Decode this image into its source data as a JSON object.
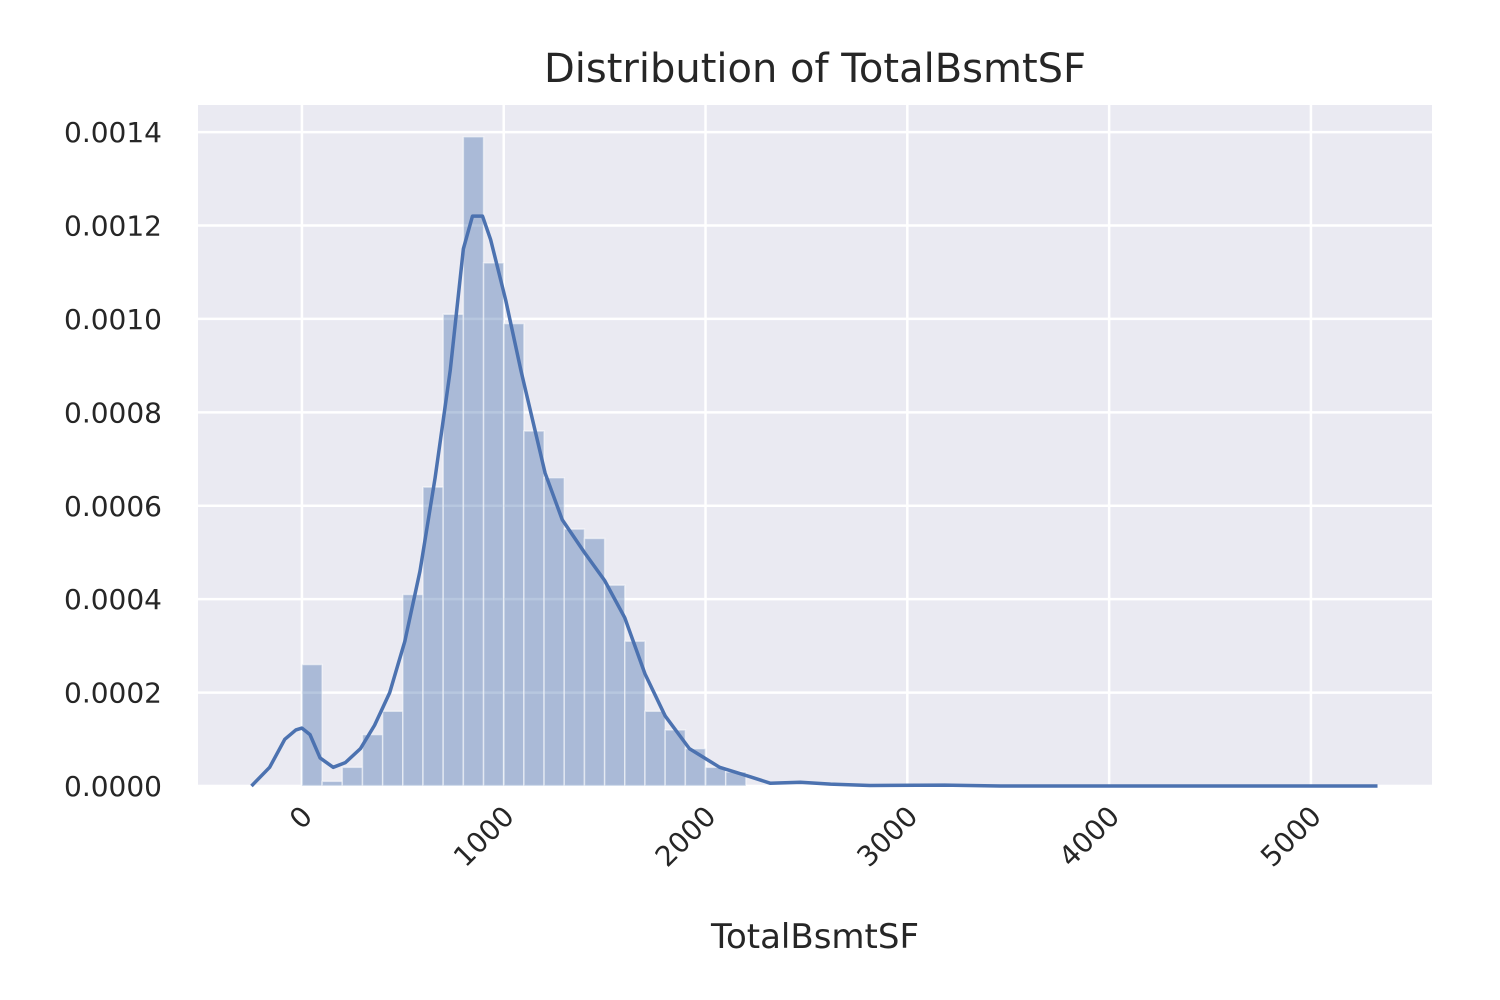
{
  "chart_data": {
    "type": "histogram",
    "title": "Distribution of TotalBsmtSF",
    "x_label": "TotalBsmtSF",
    "bins": [
      0,
      100,
      200,
      300,
      400,
      500,
      600,
      700,
      800,
      900,
      1000,
      1100,
      1200,
      1300,
      1400,
      1500,
      1600,
      1700,
      1800,
      1900,
      2000,
      2100,
      2200
    ],
    "values": [
      0.00026,
      1e-05,
      4e-05,
      0.00011,
      0.00016,
      0.00041,
      0.00064,
      0.00101,
      0.00139,
      0.00112,
      0.00099,
      0.00076,
      0.00066,
      0.00055,
      0.00053,
      0.00043,
      0.00031,
      0.00016,
      0.00012,
      8e-05,
      4e-05,
      3e-05
    ],
    "color": "#4c72b0",
    "kde": {
      "color": "#4c72b0",
      "x": [
        -250,
        -160,
        -85,
        -30,
        0,
        40,
        90,
        155,
        215,
        290,
        360,
        435,
        510,
        585,
        660,
        735,
        800,
        845,
        895,
        935,
        1010,
        1085,
        1205,
        1290,
        1400,
        1500,
        1600,
        1700,
        1800,
        1920,
        2070,
        2220,
        2320,
        2470,
        2620,
        2815,
        3185,
        3460,
        5330
      ],
      "values": [
        0,
        4e-05,
        0.0001,
        0.00012,
        0.000124,
        0.00011,
        6e-05,
        4e-05,
        5e-05,
        8e-05,
        0.00013,
        0.0002,
        0.00031,
        0.00046,
        0.00066,
        0.00089,
        0.00115,
        0.00122,
        0.00122,
        0.00117,
        0.00104,
        0.00089,
        0.00067,
        0.00057,
        0.0005,
        0.00044,
        0.00036,
        0.00024,
        0.00015,
        8e-05,
        4e-05,
        2e-05,
        6e-06,
        8e-06,
        4e-06,
        1e-06,
        2e-06,
        0,
        0
      ]
    },
    "xlim": [
      -515,
      5600
    ],
    "ylim": [
      0,
      0.001458
    ],
    "xticks": [
      0,
      1000,
      2000,
      3000,
      4000,
      5000
    ],
    "yticks": [
      {
        "value": 0,
        "label": "0.0000"
      },
      {
        "value": 0.0002,
        "label": "0.0002"
      },
      {
        "value": 0.0004,
        "label": "0.0004"
      },
      {
        "value": 0.0006,
        "label": "0.0006"
      },
      {
        "value": 0.0008,
        "label": "0.0008"
      },
      {
        "value": 0.001,
        "label": "0.0010"
      },
      {
        "value": 0.0012,
        "label": "0.0012"
      },
      {
        "value": 0.0014,
        "label": "0.0014"
      }
    ],
    "grid": true
  }
}
